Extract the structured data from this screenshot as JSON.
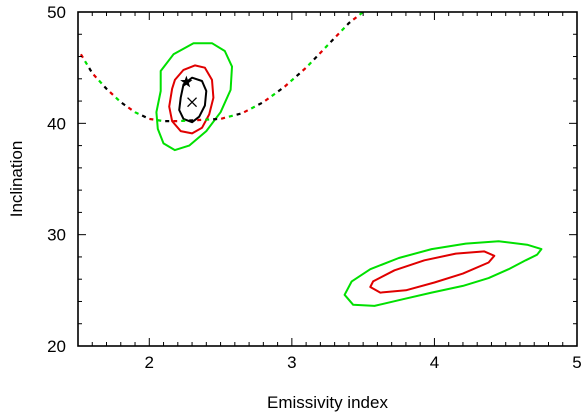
{
  "chart_data": {
    "type": "line",
    "xlabel": "Emissivity index",
    "ylabel": "Inclination",
    "xlim": [
      1.5,
      5.0
    ],
    "ylim": [
      20,
      50
    ],
    "x_ticks": [
      "2",
      "3",
      "4",
      "5"
    ],
    "y_ticks": [
      "20",
      "30",
      "40",
      "50"
    ],
    "grid": false,
    "colors": {
      "green": "#00e000",
      "red": "#e00000",
      "black": "#000000"
    },
    "contours": [
      {
        "region": "upper",
        "color": "green",
        "x": [
          2.08,
          2.05,
          2.06,
          2.1,
          2.18,
          2.28,
          2.4,
          2.5,
          2.57,
          2.58,
          2.53,
          2.44,
          2.31,
          2.17,
          2.08
        ],
        "y": [
          42.9,
          41.0,
          39.5,
          38.2,
          37.6,
          38.0,
          39.3,
          41.0,
          43.0,
          45.1,
          46.5,
          47.2,
          47.2,
          46.2,
          44.7
        ]
      },
      {
        "region": "upper",
        "color": "red",
        "x": [
          2.16,
          2.14,
          2.16,
          2.22,
          2.3,
          2.37,
          2.42,
          2.45,
          2.44,
          2.39,
          2.32,
          2.24,
          2.18,
          2.16
        ],
        "y": [
          43.1,
          41.5,
          40.2,
          39.3,
          39.1,
          39.6,
          40.8,
          42.3,
          43.9,
          45.0,
          45.2,
          44.8,
          43.9,
          43.1
        ]
      },
      {
        "region": "upper",
        "color": "black",
        "x": [
          2.22,
          2.21,
          2.24,
          2.3,
          2.35,
          2.39,
          2.4,
          2.37,
          2.3,
          2.24,
          2.22
        ],
        "y": [
          42.3,
          41.2,
          40.4,
          40.1,
          40.6,
          41.6,
          42.9,
          43.8,
          44.1,
          43.5,
          42.3
        ]
      },
      {
        "region": "lower",
        "color": "green",
        "x": [
          3.37,
          3.43,
          3.58,
          3.78,
          3.98,
          4.2,
          4.38,
          4.52,
          4.64,
          4.72,
          4.75,
          4.65,
          4.45,
          4.22,
          3.98,
          3.75,
          3.55,
          3.42,
          3.37
        ],
        "y": [
          24.6,
          23.7,
          23.6,
          24.2,
          24.8,
          25.4,
          26.1,
          26.9,
          27.7,
          28.2,
          28.7,
          29.1,
          29.4,
          29.2,
          28.7,
          27.9,
          26.9,
          25.8,
          24.6
        ]
      },
      {
        "region": "lower",
        "color": "red",
        "x": [
          3.55,
          3.62,
          3.8,
          4.0,
          4.2,
          4.38,
          4.42,
          4.35,
          4.15,
          3.93,
          3.72,
          3.57,
          3.55
        ],
        "y": [
          25.3,
          24.8,
          25.0,
          25.7,
          26.5,
          27.5,
          28.1,
          28.5,
          28.3,
          27.7,
          26.8,
          25.8,
          25.3
        ]
      }
    ],
    "curves": [
      {
        "style": "dashed",
        "colors": [
          "red",
          "green",
          "black"
        ],
        "x": [
          1.52,
          1.6,
          1.7,
          1.8,
          1.9,
          2.0,
          2.1,
          2.2,
          2.35,
          2.5,
          2.65,
          2.8,
          2.95,
          3.1,
          3.25,
          3.4,
          3.5
        ],
        "y": [
          46.2,
          44.5,
          43.1,
          41.9,
          41.0,
          40.4,
          40.2,
          40.2,
          40.3,
          40.4,
          40.9,
          41.9,
          43.3,
          45.0,
          47.0,
          49.0,
          50.0
        ]
      }
    ],
    "markers": [
      {
        "symbol": "star",
        "x": 2.26,
        "y": 43.7
      },
      {
        "symbol": "cross",
        "x": 2.3,
        "y": 41.9
      }
    ]
  }
}
